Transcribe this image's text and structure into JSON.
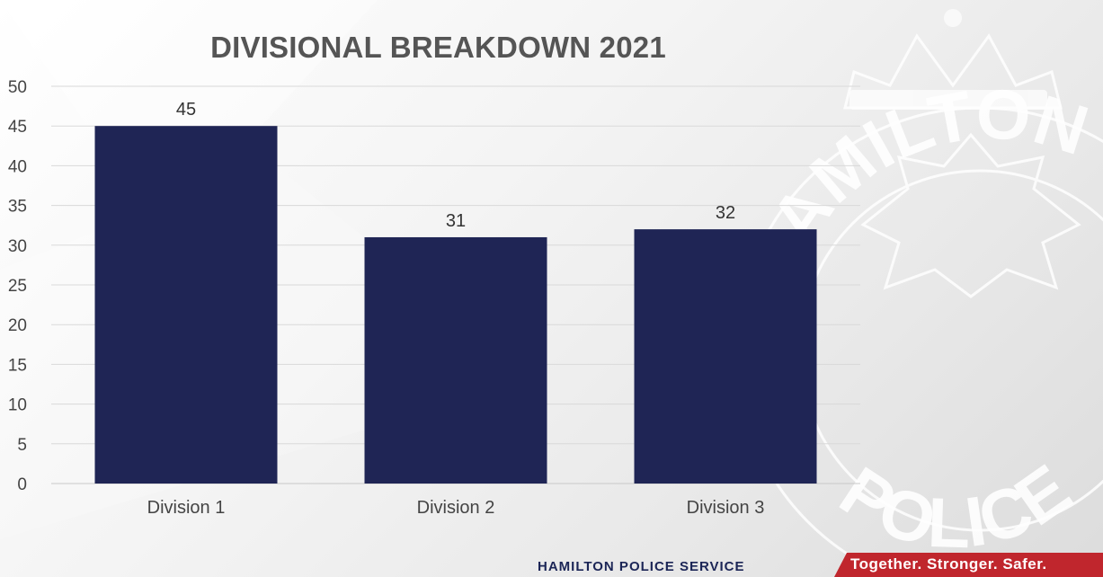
{
  "chart_data": {
    "type": "bar",
    "title": "DIVISIONAL BREAKDOWN 2021",
    "categories": [
      "Division 1",
      "Division 2",
      "Division 3"
    ],
    "values": [
      45,
      31,
      32
    ],
    "ylim": [
      0,
      50
    ],
    "yticks": [
      0,
      5,
      10,
      15,
      20,
      25,
      30,
      35,
      40,
      45,
      50
    ],
    "grid": true,
    "bar_color": "#1f2555",
    "data_labels": true
  },
  "background": {
    "emblem_text_top": "HAMILTON",
    "emblem_text_bottom": "POLICE"
  },
  "footer": {
    "brand": "HAMILTON POLICE SERVICE",
    "tagline": "Together. Stronger. Safer.",
    "brand_color": "#1b2556",
    "tagline_bg": "#c0262d"
  }
}
